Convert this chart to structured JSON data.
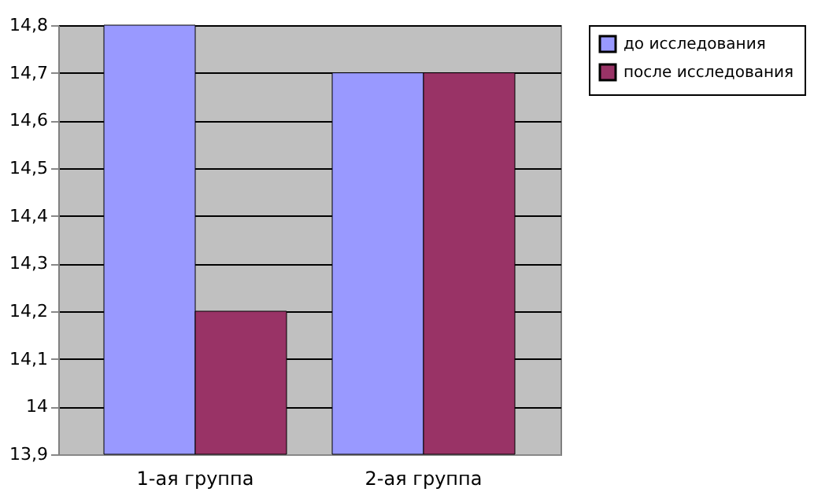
{
  "chart_data": {
    "type": "bar",
    "categories": [
      "1-ая группа",
      "2-ая группа"
    ],
    "series": [
      {
        "name": "до исследования",
        "color": "#9999ff",
        "values": [
          14.8,
          14.7
        ]
      },
      {
        "name": "после исследования",
        "color": "#993366",
        "values": [
          14.2,
          14.7
        ]
      }
    ],
    "ylim": [
      13.9,
      14.8
    ],
    "yticks": [
      {
        "value": 13.9,
        "label": "13,9"
      },
      14,
      {
        "value": 14.1,
        "label": "14,1"
      },
      {
        "value": 14.2,
        "label": "14,2"
      },
      {
        "value": 14.3,
        "label": "14,3"
      },
      {
        "value": 14.4,
        "label": "14,4"
      },
      {
        "value": 14.5,
        "label": "14,5"
      },
      {
        "value": 14.6,
        "label": "14,6"
      },
      {
        "value": 14.7,
        "label": "14,7"
      },
      {
        "value": 14.8,
        "label": "14,8"
      }
    ],
    "grid": "y",
    "legend": "right"
  }
}
